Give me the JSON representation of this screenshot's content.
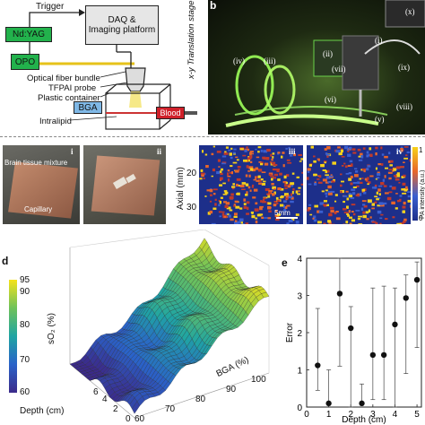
{
  "panel_a": {
    "trigger": "Trigger",
    "ndyag": "Nd:YAG",
    "opo": "OPO",
    "daq_line1": "DAQ &",
    "daq_line2": "Imaging platform",
    "stage": "x-y Translation stage",
    "fiber": "Optical fiber bundle",
    "probe": "TFPAI probe",
    "container": "Plastic container",
    "bga": "BGA",
    "intralipid": "Intralipid",
    "blood": "Blood",
    "colors": {
      "ndyag": "#22b24c",
      "opo": "#22b24c",
      "bga": "#7fb8e6",
      "blood": "#d0202a"
    }
  },
  "panel_b": {
    "letter": "b",
    "labels": [
      "(i)",
      "(ii)",
      "(iii)",
      "(iv)",
      "(v)",
      "(vi)",
      "(vii)",
      "(viii)",
      "(ix)",
      "(x)"
    ]
  },
  "panel_c": {
    "i_label": "i",
    "ii_label": "ii",
    "iii_label": "iii",
    "iv_label": "iv",
    "brain": "Brain tissue mixture",
    "capillary": "Capillary",
    "axial": "Axial (mm)",
    "ticks": [
      "20",
      "30"
    ],
    "scale": "5mm",
    "cbar_label": "PA intensity (a.u.)",
    "cbar_top": "1",
    "cbar_bottom": "0"
  },
  "panel_d": {
    "letter": "d",
    "zlabel": "sO₂ (%)",
    "cbar_ticks": [
      "95",
      "90",
      "80",
      "70",
      "60"
    ],
    "xlabel": "Depth (cm)",
    "xticks": [
      "6",
      "4",
      "2",
      "0"
    ],
    "ylabel": "BGA (%)",
    "yticks": [
      "60",
      "70",
      "80",
      "90",
      "100"
    ]
  },
  "panel_e": {
    "letter": "e"
  },
  "chart_data": {
    "type": "scatter",
    "xlabel": "Depth (cm)",
    "ylabel": "Error",
    "xlim": [
      0,
      5.2
    ],
    "ylim": [
      0,
      4
    ],
    "xticks": [
      "0",
      "1",
      "2",
      "3",
      "4",
      "5"
    ],
    "yticks": [
      "0",
      "1",
      "2",
      "3",
      "4"
    ],
    "x": [
      0.5,
      1.0,
      1.5,
      2.0,
      2.5,
      3.0,
      3.5,
      4.0,
      4.5,
      5.0
    ],
    "y": [
      1.12,
      0.1,
      3.05,
      2.12,
      0.1,
      1.4,
      1.4,
      2.22,
      2.93,
      3.42
    ],
    "err_low": [
      0.45,
      0.1,
      1.1,
      0.0,
      0.1,
      0.2,
      0.2,
      0.0,
      0.9,
      1.6
    ],
    "err_high": [
      2.65,
      1.0,
      4.0,
      2.7,
      0.62,
      3.2,
      3.25,
      3.2,
      3.55,
      3.9
    ]
  }
}
